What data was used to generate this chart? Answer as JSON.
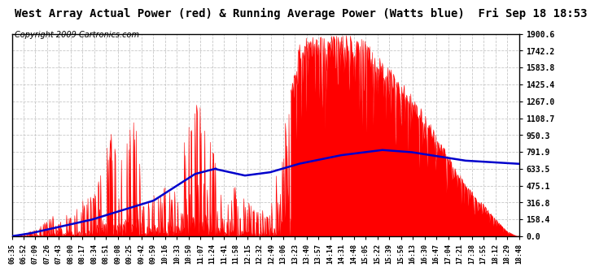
{
  "title": "West Array Actual Power (red) & Running Average Power (Watts blue)  Fri Sep 18 18:53",
  "copyright": "Copyright 2009 Cartronics.com",
  "ylabel_right_values": [
    0.0,
    158.4,
    316.8,
    475.1,
    633.5,
    791.9,
    950.3,
    1108.7,
    1267.0,
    1425.4,
    1583.8,
    1742.2,
    1900.6
  ],
  "ymax": 1900.6,
  "ymin": 0.0,
  "background_color": "#ffffff",
  "plot_bg_color": "#ffffff",
  "grid_color": "#c8c8c8",
  "red_color": "#ff0000",
  "blue_color": "#0000cc",
  "x_labels": [
    "06:35",
    "06:52",
    "07:09",
    "07:26",
    "07:43",
    "08:00",
    "08:17",
    "08:34",
    "08:51",
    "09:08",
    "09:25",
    "09:42",
    "09:59",
    "10:16",
    "10:33",
    "10:50",
    "11:07",
    "11:24",
    "11:41",
    "11:58",
    "12:15",
    "12:32",
    "12:49",
    "13:06",
    "13:23",
    "13:40",
    "13:57",
    "14:14",
    "14:31",
    "14:48",
    "15:05",
    "15:22",
    "15:39",
    "15:56",
    "16:13",
    "16:30",
    "16:47",
    "17:04",
    "17:21",
    "17:38",
    "17:55",
    "18:12",
    "18:29",
    "18:48"
  ],
  "title_fontsize": 10,
  "copyright_fontsize": 7,
  "n_points": 1000
}
